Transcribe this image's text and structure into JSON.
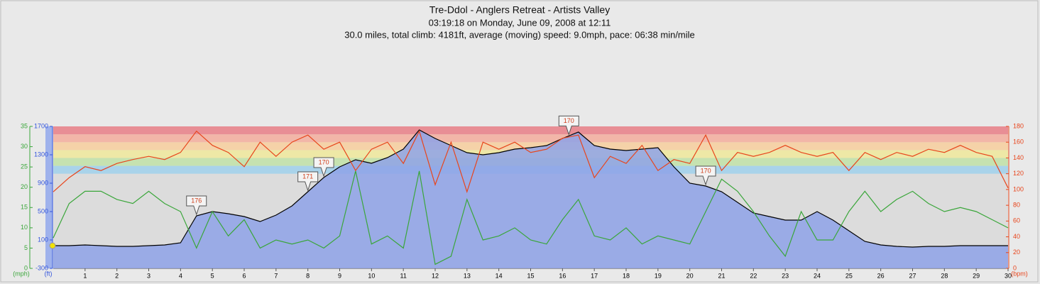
{
  "chart_data": {
    "type": "line",
    "title": "Tre-Ddol - Anglers Retreat - Artists Valley",
    "subtitle": "03:19:18 on Monday, June 09, 2008 at 12:11",
    "summary": "30.0 miles, total climb: 4181ft, average (moving) speed: 9.0mph, pace: 06:38 min/mile",
    "y_label": "(ft)",
    "y2_label": "(bpm)",
    "y3_label": "(mph)",
    "x": [
      0,
      0.5,
      1,
      1.5,
      2,
      2.5,
      3,
      3.5,
      4,
      4.5,
      5,
      5.5,
      6,
      6.5,
      7,
      7.5,
      8,
      8.5,
      9,
      9.5,
      10,
      10.5,
      11,
      11.5,
      12,
      12.5,
      13,
      13.5,
      14,
      14.5,
      15,
      15.5,
      16,
      16.5,
      17,
      17.5,
      18,
      18.5,
      19,
      19.5,
      20,
      20.5,
      21,
      21.5,
      22,
      22.5,
      23,
      23.5,
      24,
      24.5,
      25,
      25.5,
      26,
      26.5,
      27,
      27.5,
      28,
      28.5,
      29,
      29.5,
      30
    ],
    "xlim": [
      0,
      30
    ],
    "xticks": [
      1,
      2,
      3,
      4,
      5,
      6,
      7,
      8,
      9,
      10,
      11,
      12,
      13,
      14,
      15,
      16,
      17,
      18,
      19,
      20,
      21,
      22,
      23,
      24,
      25,
      26,
      27,
      28,
      29,
      30
    ],
    "ylim": [
      -300,
      1700
    ],
    "yticks": [
      -300,
      100,
      500,
      900,
      1300,
      1700
    ],
    "y2lim": [
      0,
      180
    ],
    "y2ticks": [
      0,
      20,
      40,
      60,
      80,
      100,
      120,
      140,
      160,
      180
    ],
    "y3lim": [
      0,
      35
    ],
    "y3ticks": [
      0,
      5,
      10,
      15,
      20,
      25,
      30,
      35
    ],
    "zones": [
      {
        "from": 120,
        "to": 130,
        "color": "#a9d3ea"
      },
      {
        "from": 130,
        "to": 140,
        "color": "#c6e2b0"
      },
      {
        "from": 140,
        "to": 150,
        "color": "#eee8a6"
      },
      {
        "from": 150,
        "to": 160,
        "color": "#f5d2a8"
      },
      {
        "from": 160,
        "to": 170,
        "color": "#f2b6a8"
      },
      {
        "from": 170,
        "to": 180,
        "color": "#e88e95"
      }
    ],
    "series": [
      {
        "axis": "y",
        "color": "#000000",
        "fill": "#8ea2e8",
        "values": [
          20,
          20,
          30,
          20,
          10,
          10,
          20,
          30,
          60,
          440,
          500,
          470,
          430,
          360,
          450,
          580,
          780,
          980,
          1130,
          1230,
          1180,
          1260,
          1380,
          1650,
          1530,
          1430,
          1330,
          1300,
          1330,
          1380,
          1400,
          1430,
          1530,
          1620,
          1430,
          1380,
          1360,
          1380,
          1400,
          1130,
          900,
          860,
          780,
          630,
          480,
          430,
          380,
          380,
          500,
          380,
          230,
          80,
          30,
          10,
          0,
          10,
          10,
          20,
          20,
          20,
          20
        ]
      },
      {
        "axis": "y3",
        "color": "#3aa63a",
        "values": [
          7.5,
          16,
          19,
          19,
          17,
          16,
          19,
          16,
          14,
          5,
          14,
          8,
          12,
          5,
          7,
          6,
          7,
          5,
          8,
          24,
          6,
          8,
          5,
          24,
          1,
          3,
          17,
          7,
          8,
          10,
          7,
          6,
          12,
          17,
          8,
          7,
          10,
          6,
          8,
          7,
          6,
          14,
          22,
          19,
          14,
          8,
          3,
          14,
          7,
          7,
          14,
          19,
          14,
          17,
          19,
          16,
          14,
          15,
          14,
          12,
          10
        ]
      },
      {
        "axis": "y2",
        "color": "#e8451c",
        "values": [
          97,
          115,
          129,
          124,
          133,
          138,
          142,
          138,
          147,
          174,
          156,
          147,
          129,
          160,
          142,
          160,
          169,
          151,
          160,
          124,
          151,
          160,
          133,
          174,
          106,
          160,
          97,
          160,
          151,
          160,
          147,
          151,
          165,
          169,
          115,
          142,
          133,
          156,
          124,
          138,
          133,
          169,
          124,
          147,
          142,
          147,
          156,
          147,
          142,
          147,
          124,
          147,
          138,
          147,
          142,
          151,
          147,
          156,
          147,
          142,
          102
        ]
      }
    ],
    "annotations": [
      {
        "x": 4.5,
        "text": "176"
      },
      {
        "x": 8,
        "text": "171"
      },
      {
        "x": 8.5,
        "text": "170"
      },
      {
        "x": 16.2,
        "text": "170"
      },
      {
        "x": 20.5,
        "text": "170"
      }
    ]
  }
}
